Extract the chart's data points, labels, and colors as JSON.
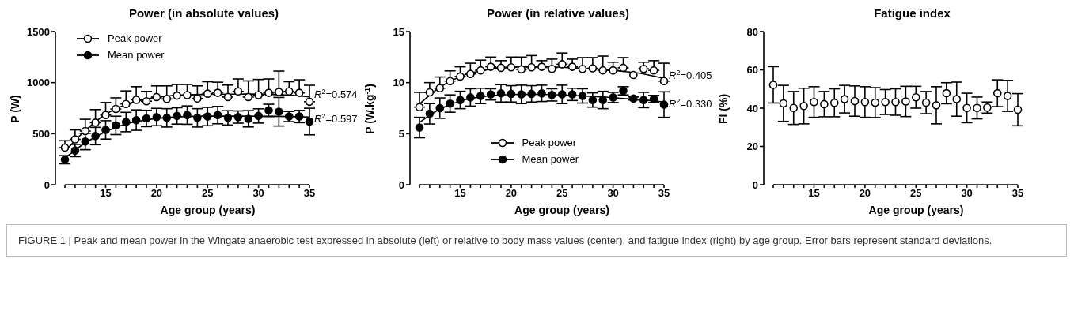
{
  "chart_data": [
    {
      "type": "scatter",
      "title": "Power (in absolute values)",
      "xlabel": "Age group (years)",
      "ylabel": "P (W)",
      "x": [
        11,
        12,
        13,
        14,
        15,
        16,
        17,
        18,
        19,
        20,
        21,
        22,
        23,
        24,
        25,
        26,
        27,
        28,
        29,
        30,
        31,
        32,
        33,
        34,
        35
      ],
      "xlim": [
        11,
        35
      ],
      "xticks": [
        {
          "value": 11,
          "label": null
        },
        {
          "value": 12,
          "label": null
        },
        {
          "value": 13,
          "label": null
        },
        {
          "value": 14,
          "label": null
        },
        15,
        {
          "value": 16,
          "label": null
        },
        {
          "value": 17,
          "label": null
        },
        {
          "value": 18,
          "label": null
        },
        {
          "value": 19,
          "label": null
        },
        20,
        {
          "value": 21,
          "label": null
        },
        {
          "value": 22,
          "label": null
        },
        {
          "value": 23,
          "label": null
        },
        {
          "value": 24,
          "label": null
        },
        25,
        {
          "value": 26,
          "label": null
        },
        {
          "value": 27,
          "label": null
        },
        {
          "value": 28,
          "label": null
        },
        {
          "value": 29,
          "label": null
        },
        30,
        {
          "value": 31,
          "label": null
        },
        {
          "value": 32,
          "label": null
        },
        {
          "value": 33,
          "label": null
        },
        {
          "value": 34,
          "label": null
        },
        35
      ],
      "ylim": [
        0,
        1500
      ],
      "yticks": [
        0,
        500,
        1000,
        1500
      ],
      "legend": "top left",
      "series": [
        {
          "name": "Peak power",
          "marker": "circle",
          "color": "#000000",
          "values": [
            363,
            445,
            526,
            608,
            682,
            742,
            791,
            832,
            818,
            859,
            840,
            873,
            878,
            845,
            892,
            900,
            859,
            914,
            859,
            878,
            900,
            908,
            914,
            900,
            813
          ],
          "errors": [
            [
              363,
              431
            ],
            [
              445,
              537
            ],
            [
              526,
              641
            ],
            [
              608,
              736
            ],
            [
              682,
              805
            ],
            [
              742,
              851
            ],
            [
              791,
              919
            ],
            [
              832,
              960
            ],
            [
              818,
              914
            ],
            [
              859,
              968
            ],
            [
              840,
              968
            ],
            [
              873,
              982
            ],
            [
              878,
              982
            ],
            [
              845,
              968
            ],
            [
              892,
              1009
            ],
            [
              900,
              1004
            ],
            [
              859,
              976
            ],
            [
              914,
              1036
            ],
            [
              859,
              1017
            ],
            [
              878,
              1031
            ],
            [
              900,
              1036
            ],
            [
              908,
              1113
            ],
            [
              914,
              1009
            ],
            [
              900,
              1028
            ],
            [
              813,
              974
            ]
          ]
        },
        {
          "name": "Mean power",
          "marker": "circle",
          "color": "#000000",
          "values": [
            245,
            335,
            423,
            477,
            537,
            581,
            614,
            633,
            649,
            663,
            655,
            674,
            682,
            655,
            668,
            682,
            655,
            663,
            646,
            674,
            728,
            715,
            668,
            668,
            619
          ],
          "errors": [
            40,
            60,
            80,
            85,
            90,
            90,
            95,
            100,
            80,
            85,
            90,
            80,
            90,
            90,
            90,
            85,
            70,
            60,
            80,
            70,
            60,
            140,
            50,
            60,
            130
          ]
        },
        {
          "name": "R$^{2}$=0.574",
          "type": "line",
          "color": "#000000",
          "x": [
            11,
            13,
            15,
            17,
            19,
            21,
            23,
            25,
            27,
            29,
            31,
            33,
            35
          ],
          "values": [
            327,
            530,
            690,
            785,
            840,
            868,
            880,
            885,
            887,
            888,
            885,
            878,
            860
          ]
        },
        {
          "name": "R$^{2}$=0.597",
          "type": "line",
          "color": "#000000",
          "x": [
            11,
            13,
            15,
            17,
            19,
            21,
            23,
            25,
            27,
            29,
            31,
            33,
            35
          ],
          "values": [
            260,
            410,
            520,
            595,
            635,
            658,
            668,
            672,
            672,
            672,
            670,
            668,
            662
          ]
        }
      ],
      "annotations": [
        "FIGURE 1 | Peak and mean power in the Wingate anaerobic test expressed in absolute (left) or relative to body mass values (center), and fatigue index (right) by age group. Error bars represent standard deviations."
      ]
    },
    {
      "type": "scatter",
      "title": "Power (in relative values)",
      "xlabel": "Age group (years)",
      "ylabel": "P (W.kg$^{-1}$)",
      "x": [
        11,
        12,
        13,
        14,
        15,
        16,
        17,
        18,
        19,
        20,
        21,
        22,
        23,
        24,
        25,
        26,
        27,
        28,
        29,
        30,
        31,
        32,
        33,
        34,
        35
      ],
      "xlim": [
        11,
        35
      ],
      "xticks": [
        {
          "value": 11,
          "label": null
        },
        {
          "value": 12,
          "label": null
        },
        {
          "value": 13,
          "label": null
        },
        {
          "value": 14,
          "label": null
        },
        15,
        {
          "value": 16,
          "label": null
        },
        {
          "value": 17,
          "label": null
        },
        {
          "value": 18,
          "label": null
        },
        {
          "value": 19,
          "label": null
        },
        20,
        {
          "value": 21,
          "label": null
        },
        {
          "value": 22,
          "label": null
        },
        {
          "value": 23,
          "label": null
        },
        {
          "value": 24,
          "label": null
        },
        25,
        {
          "value": 26,
          "label": null
        },
        {
          "value": 27,
          "label": null
        },
        {
          "value": 28,
          "label": null
        },
        {
          "value": 29,
          "label": null
        },
        30,
        {
          "value": 31,
          "label": null
        },
        {
          "value": 32,
          "label": null
        },
        {
          "value": 33,
          "label": null
        },
        {
          "value": 34,
          "label": null
        },
        35
      ],
      "ylim": [
        0,
        15
      ],
      "yticks": [
        0,
        5,
        10,
        15
      ],
      "legend": "bottom",
      "series": [
        {
          "name": "Peak power",
          "marker": "circle",
          "color": "#000000",
          "values": [
            7.6,
            9.05,
            9.45,
            10.15,
            10.6,
            10.85,
            11.2,
            11.55,
            11.45,
            11.5,
            11.3,
            11.5,
            11.55,
            11.35,
            11.8,
            11.55,
            11.35,
            11.4,
            11.2,
            11.2,
            11.45,
            10.75,
            11.35,
            11.2,
            10.15
          ],
          "errors": [
            [
              7.6,
              9.05
            ],
            [
              9.05,
              10.0
            ],
            [
              9.45,
              10.55
            ],
            [
              10.15,
              11.15
            ],
            [
              10.6,
              11.55
            ],
            [
              10.85,
              11.9
            ],
            [
              11.2,
              12.2
            ],
            [
              11.55,
              12.5
            ],
            [
              11.45,
              12.15
            ],
            [
              11.5,
              12.5
            ],
            [
              11.3,
              12.5
            ],
            [
              11.5,
              12.65
            ],
            [
              11.55,
              12.15
            ],
            [
              11.35,
              12.3
            ],
            [
              11.8,
              12.9
            ],
            [
              11.55,
              12.3
            ],
            [
              11.35,
              12.45
            ],
            [
              11.4,
              12.45
            ],
            [
              11.2,
              12.6
            ],
            [
              11.2,
              12.0
            ],
            [
              11.45,
              12.45
            ],
            null,
            [
              11.35,
              12.0
            ],
            [
              11.2,
              12.15
            ],
            [
              10.15,
              11.9
            ]
          ]
        },
        {
          "name": "Mean power",
          "marker": "circle",
          "color": "#000000",
          "values": [
            5.6,
            6.95,
            7.5,
            7.95,
            8.3,
            8.55,
            8.7,
            8.85,
            8.95,
            8.9,
            8.85,
            8.9,
            8.95,
            8.8,
            8.85,
            8.85,
            8.7,
            8.3,
            8.3,
            8.55,
            9.2,
            8.45,
            8.3,
            8.4,
            7.85
          ],
          "errors": [
            1.0,
            1.0,
            1.0,
            0.85,
            0.85,
            0.85,
            0.75,
            0.55,
            0.85,
            0.8,
            0.9,
            0.8,
            0.8,
            0.6,
            0.9,
            0.6,
            0.7,
            0.7,
            0.85,
            0.5,
            0.4,
            0.15,
            0.75,
            0.35,
            1.25
          ]
        },
        {
          "name": "R$^{2}$=0.405",
          "type": "line",
          "color": "#000000",
          "x": [
            11,
            13,
            15,
            17,
            19,
            21,
            23,
            25,
            27,
            29,
            31,
            33,
            35
          ],
          "values": [
            7.9,
            9.55,
            10.6,
            11.15,
            11.45,
            11.55,
            11.55,
            11.5,
            11.4,
            11.3,
            11.1,
            10.85,
            10.4
          ]
        },
        {
          "name": "R$^{2}$=0.330",
          "type": "line",
          "color": "#000000",
          "x": [
            11,
            13,
            15,
            17,
            19,
            21,
            23,
            25,
            27,
            29,
            31,
            33,
            35
          ],
          "values": [
            6.1,
            7.4,
            8.2,
            8.6,
            8.8,
            8.85,
            8.85,
            8.8,
            8.7,
            8.6,
            8.45,
            8.3,
            8.1
          ]
        }
      ],
      "tick_labels": true
    },
    {
      "type": "scatter",
      "title": "Fatigue index",
      "xlabel": "Age group (years)",
      "ylabel": "FI (%)",
      "x": [
        11,
        12,
        13,
        14,
        15,
        16,
        17,
        18,
        19,
        20,
        21,
        22,
        23,
        24,
        25,
        26,
        27,
        28,
        29,
        30,
        31,
        32,
        33,
        34,
        35
      ],
      "xlim": [
        11,
        35
      ],
      "xticks": [
        {
          "value": 11,
          "label": null
        },
        {
          "value": 12,
          "label": null
        },
        {
          "value": 13,
          "label": null
        },
        {
          "value": 14,
          "label": null
        },
        15,
        {
          "value": 16,
          "label": null
        },
        {
          "value": 17,
          "label": null
        },
        {
          "value": 18,
          "label": null
        },
        {
          "value": 19,
          "label": null
        },
        20,
        {
          "value": 21,
          "label": null
        },
        {
          "value": 22,
          "label": null
        },
        {
          "value": 23,
          "label": null
        },
        {
          "value": 24,
          "label": null
        },
        25,
        {
          "value": 26,
          "label": null
        },
        {
          "value": 27,
          "label": null
        },
        {
          "value": 28,
          "label": null
        },
        {
          "value": 29,
          "label": null
        },
        30,
        {
          "value": 31,
          "label": null
        },
        {
          "value": 32,
          "label": null
        },
        {
          "value": 33,
          "label": null
        },
        {
          "value": 34,
          "label": null
        },
        35
      ],
      "ylim": [
        0,
        80
      ],
      "yticks": [
        0,
        20,
        40,
        60,
        80
      ],
      "series": [
        {
          "marker": "circle",
          "color": "#000000",
          "values": [
            52.2,
            42.5,
            40.1,
            41.1,
            43.2,
            42.1,
            42.8,
            44.7,
            43.7,
            43.2,
            42.9,
            43.2,
            43.2,
            43.5,
            45.7,
            42.9,
            41.5,
            47.8,
            44.7,
            40.1,
            40.1,
            40.3,
            47.8,
            46.4,
            39.2
          ],
          "errors": [
            9.5,
            9.4,
            8.6,
            9.3,
            8,
            6.6,
            7.3,
            7.2,
            7.9,
            8,
            7.8,
            6.5,
            6.9,
            7.9,
            5.7,
            5.8,
            9.7,
            5.5,
            8.9,
            7.7,
            5.7,
            2.9,
            7,
            8.1,
            8.4
          ]
        }
      ]
    }
  ]
}
